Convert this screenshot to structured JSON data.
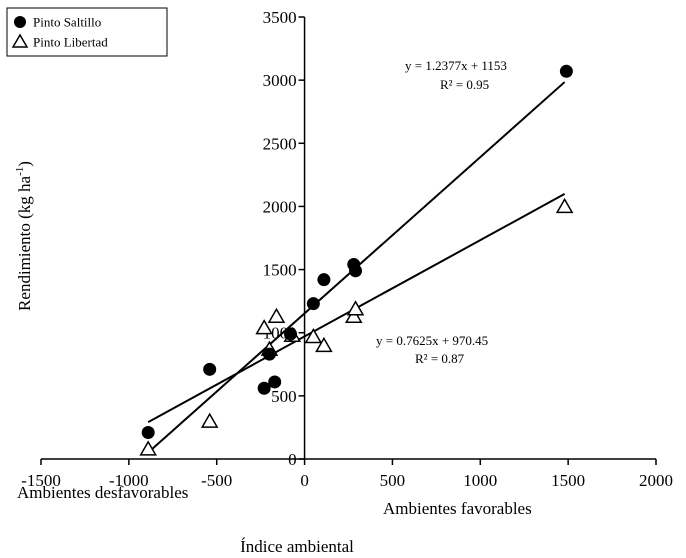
{
  "chart_data": {
    "type": "scatter",
    "x_ticks": [
      "-1500",
      "-1000",
      "-500",
      "0",
      "500",
      "1000",
      "1500",
      "2000"
    ],
    "x_tick_values": [
      -1500,
      -1000,
      -500,
      0,
      500,
      1000,
      1500,
      2000
    ],
    "y_ticks": [
      "0",
      "500",
      "1000",
      "1500",
      "2000",
      "2500",
      "3000",
      "3500"
    ],
    "y_tick_values": [
      0,
      500,
      1000,
      1500,
      2000,
      2500,
      3000,
      3500
    ],
    "xlim": [
      -1500,
      2000
    ],
    "ylim": [
      0,
      3500
    ],
    "xlabel": "Índice ambiental",
    "ylabel_main": "Rendimiento (kg ha",
    "ylabel_sup": "-1",
    "ylabel_close": ")",
    "x_sublabels": {
      "left": "Ambientes desfavorables",
      "right": "Ambientes favorables"
    },
    "legend_position": "top-left",
    "series": [
      {
        "name": "Pinto Saltillo",
        "marker": "filled-circle",
        "points": [
          {
            "x": -890,
            "y": 210
          },
          {
            "x": -540,
            "y": 710
          },
          {
            "x": -230,
            "y": 560
          },
          {
            "x": -200,
            "y": 830
          },
          {
            "x": -170,
            "y": 610
          },
          {
            "x": -80,
            "y": 990
          },
          {
            "x": 50,
            "y": 1230
          },
          {
            "x": 110,
            "y": 1420
          },
          {
            "x": 280,
            "y": 1540
          },
          {
            "x": 290,
            "y": 1490
          },
          {
            "x": 1490,
            "y": 3070
          }
        ],
        "fit": {
          "slope": 1.2377,
          "intercept": 1153,
          "x_range": [
            -890,
            1480
          ]
        },
        "equation": "y = 1.2377x + 1153",
        "r2": "R² = 0.95"
      },
      {
        "name": "Pinto Libertad",
        "marker": "open-triangle",
        "points": [
          {
            "x": -890,
            "y": 80
          },
          {
            "x": -540,
            "y": 300
          },
          {
            "x": -230,
            "y": 1040
          },
          {
            "x": -200,
            "y": 870
          },
          {
            "x": -160,
            "y": 1130
          },
          {
            "x": -70,
            "y": 980
          },
          {
            "x": 50,
            "y": 970
          },
          {
            "x": 110,
            "y": 900
          },
          {
            "x": 280,
            "y": 1130
          },
          {
            "x": 290,
            "y": 1190
          },
          {
            "x": 1480,
            "y": 2000
          }
        ],
        "fit": {
          "slope": 0.7625,
          "intercept": 970.45,
          "x_range": [
            -890,
            1480
          ]
        },
        "equation": "y = 0.7625x + 970.45",
        "r2": "R² = 0.87"
      }
    ]
  }
}
